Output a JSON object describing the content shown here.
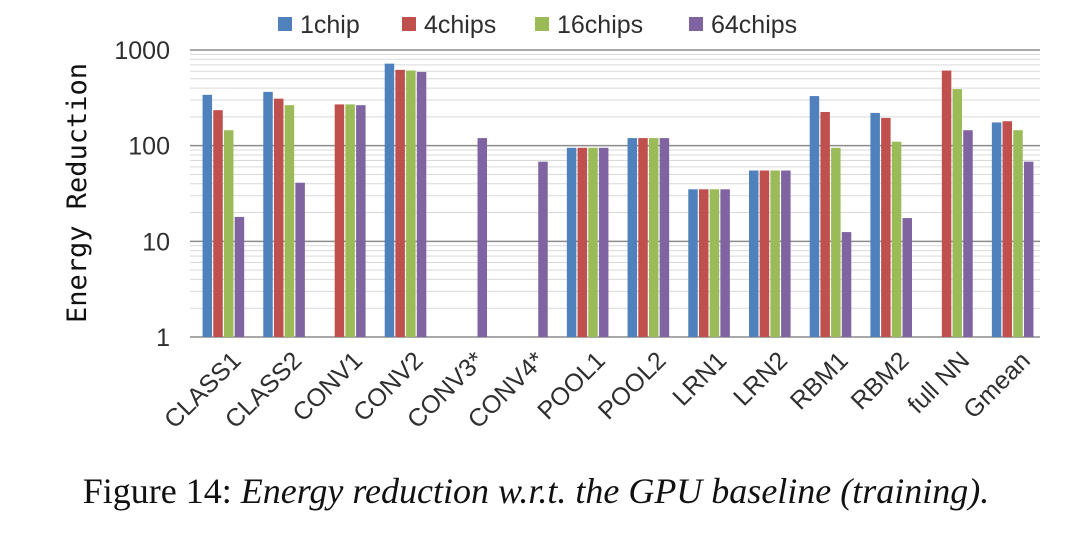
{
  "chart_data": {
    "type": "bar",
    "ylabel": "Energy Reduction",
    "yscale": "log",
    "ylim": [
      1,
      1000
    ],
    "yticks": [
      "1",
      "10",
      "100",
      "1000"
    ],
    "grid": true,
    "legend_position": "top",
    "categories": [
      "CLASS1",
      "CLASS2",
      "CONV1",
      "CONV2",
      "CONV3*",
      "CONV4*",
      "POOL1",
      "POOL2",
      "LRN1",
      "LRN2",
      "RBM1",
      "RBM2",
      "full NN",
      "Gmean"
    ],
    "series": [
      {
        "name": "1chip",
        "color": "#4f81bd",
        "values": [
          340,
          365,
          null,
          720,
          null,
          null,
          95,
          120,
          35,
          55,
          330,
          220,
          null,
          175
        ]
      },
      {
        "name": "4chips",
        "color": "#c0504d",
        "values": [
          235,
          310,
          270,
          620,
          null,
          null,
          95,
          120,
          35,
          55,
          225,
          195,
          610,
          180
        ]
      },
      {
        "name": "16chips",
        "color": "#9bbb59",
        "values": [
          145,
          265,
          270,
          610,
          null,
          null,
          95,
          120,
          35,
          55,
          95,
          110,
          390,
          145
        ]
      },
      {
        "name": "64chips",
        "color": "#8064a2",
        "values": [
          18,
          41,
          265,
          590,
          120,
          68,
          95,
          120,
          35,
          55,
          12.5,
          17.5,
          145,
          68
        ]
      }
    ]
  },
  "caption": {
    "prefix": "Figure 14: ",
    "text": "Energy reduction w.r.t. the GPU baseline (training)."
  }
}
